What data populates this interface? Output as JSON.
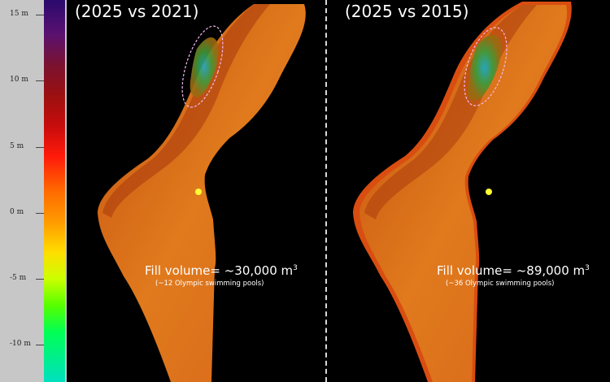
{
  "legend": {
    "ticks": [
      {
        "label": "15 m",
        "value": 15
      },
      {
        "label": "10 m",
        "value": 10
      },
      {
        "label": "5 m",
        "value": 5
      },
      {
        "label": "0 m",
        "value": 0
      },
      {
        "label": "-5 m",
        "value": -5
      },
      {
        "label": "-10 m",
        "value": -10
      }
    ]
  },
  "panels": [
    {
      "title": "(2025 vs 2021)",
      "fill_text": "Fill volume= ~30,000 m",
      "fill_unit_sup": "3",
      "pools_text": "(~12 Olympic swimming pools)"
    },
    {
      "title": "(2025 vs 2015)",
      "fill_text": "Fill volume= ~89,000 m",
      "fill_unit_sup": "3",
      "pools_text": "(~36 Olympic swimming pools)"
    }
  ],
  "colors": {
    "terrain": "#e0761d",
    "terrain_dark": "#b8420f",
    "marker": "#ffff33",
    "outline": "#f2b8f2"
  }
}
